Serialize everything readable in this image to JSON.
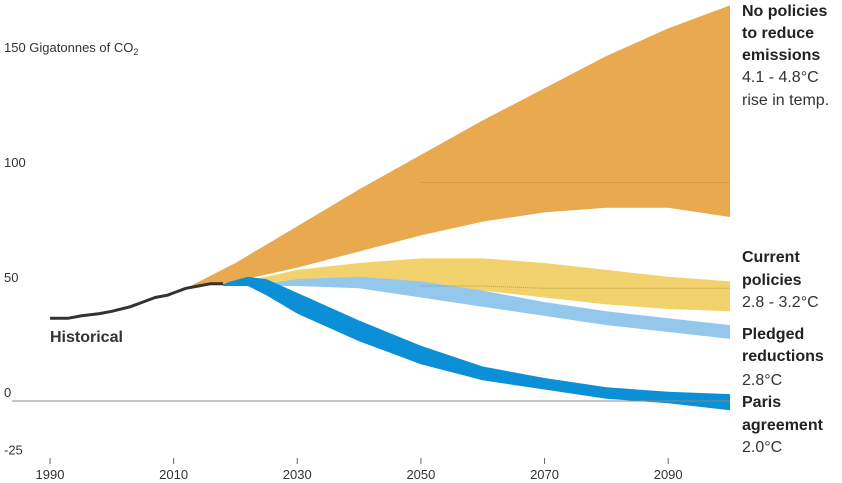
{
  "chart_data": {
    "type": "area",
    "title": "",
    "xlabel": "",
    "ylabel": "150 Gigatonnes of CO",
    "ylabel_subscript": "2",
    "xlim": [
      1990,
      2100
    ],
    "ylim": [
      -25,
      175
    ],
    "x_ticks": [
      1990,
      2010,
      2030,
      2050,
      2070,
      2090
    ],
    "y_ticks": [
      {
        "value": 150,
        "label": "150 Gigatonnes of CO"
      },
      {
        "value": 100,
        "label": "100"
      },
      {
        "value": 50,
        "label": "50"
      },
      {
        "value": 0,
        "label": "0"
      },
      {
        "value": -25,
        "label": "-25"
      }
    ],
    "zero_line": true,
    "grid": false,
    "historical": {
      "label": "Historical",
      "color": "#333333",
      "x": [
        1990,
        1993,
        1995,
        1998,
        2000,
        2003,
        2005,
        2007,
        2009,
        2010,
        2012,
        2014,
        2016,
        2018
      ],
      "y": [
        36,
        36,
        37,
        38,
        39,
        41,
        43,
        45,
        46,
        47,
        49,
        50,
        51,
        51
      ]
    },
    "series": [
      {
        "name": "No policies to reduce emissions",
        "range_text": "4.1 - 4.8°C",
        "detail_text": "rise in temp.",
        "color": "#e8a94f",
        "x": [
          2012,
          2020,
          2030,
          2040,
          2050,
          2060,
          2070,
          2080,
          2090,
          2100
        ],
        "lower": [
          49,
          52,
          58,
          65,
          72,
          78,
          82,
          84,
          84,
          80
        ],
        "upper": [
          49,
          60,
          76,
          92,
          107,
          122,
          136,
          150,
          162,
          172
        ],
        "median": [
          null,
          null,
          null,
          null,
          95,
          95,
          95,
          95,
          95,
          95
        ]
      },
      {
        "name": "Current policies",
        "range_text": "2.8 - 3.2°C",
        "color": "#f1d26c",
        "x": [
          2018,
          2025,
          2030,
          2040,
          2050,
          2060,
          2070,
          2080,
          2090,
          2100
        ],
        "lower": [
          51,
          51,
          52,
          52,
          51,
          48,
          45,
          42,
          40,
          39
        ],
        "upper": [
          51,
          54,
          57,
          60,
          62,
          62,
          60,
          57,
          54,
          52
        ],
        "median": [
          null,
          null,
          null,
          null,
          50,
          50,
          49,
          49,
          49,
          49
        ]
      },
      {
        "name": "Pledged reductions",
        "range_text": "2.8°C",
        "color": "#93c8ec",
        "x": [
          2018,
          2025,
          2030,
          2040,
          2050,
          2060,
          2070,
          2080,
          2090,
          2100
        ],
        "lower": [
          50,
          50,
          50,
          49,
          45,
          41,
          37,
          33,
          30,
          27
        ],
        "upper": [
          51,
          51,
          53,
          54,
          52,
          48,
          43,
          39,
          36,
          33
        ]
      },
      {
        "name": "Paris agreement",
        "range_text": "2.0°C",
        "color": "#0b8fd6",
        "x": [
          2018,
          2022,
          2025,
          2030,
          2040,
          2050,
          2060,
          2070,
          2080,
          2090,
          2100
        ],
        "lower": [
          50,
          50,
          46,
          38,
          26,
          16,
          9,
          5,
          1,
          -1,
          -4
        ],
        "upper": [
          51,
          54,
          53,
          47,
          35,
          24,
          15,
          10,
          6,
          4,
          3
        ]
      }
    ],
    "legend_placement": "right"
  }
}
